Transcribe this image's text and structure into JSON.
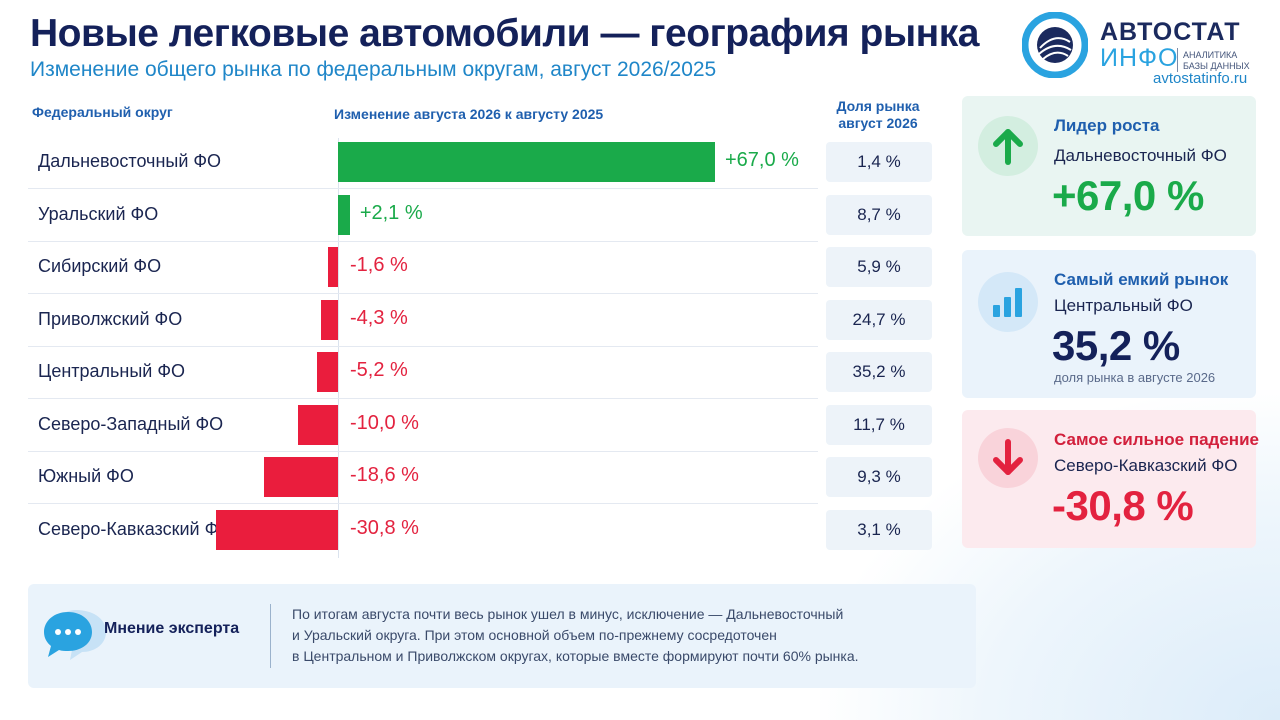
{
  "header": {
    "title": "Новые легковые автомобили — география рынка",
    "subtitle": "Изменение общего рынка по федеральным округам, август 2026/2025"
  },
  "logo": {
    "main": "АВТОСТАТ",
    "sub": "ИНФО",
    "tagline_1": "АНАЛИТИКА",
    "tagline_2": "БАЗЫ ДАННЫХ",
    "url": "avtostatinfo.ru"
  },
  "columns": {
    "region": "Федеральный округ",
    "change": "Изменение августа 2026 к августу 2025",
    "share": "Доля рынка август 2026"
  },
  "colors": {
    "positive": "#1aaa4a",
    "negative": "#ea1d3d",
    "title": "#14215a",
    "accent": "#1f86c8"
  },
  "chart_data": {
    "type": "bar",
    "orientation": "horizontal",
    "title": "Изменение августа 2026 к августу 2025",
    "categories": [
      "Дальневосточный ФО",
      "Уральский ФО",
      "Сибирский ФО",
      "Приволжский ФО",
      "Центральный ФО",
      "Северо-Западный ФО",
      "Южный ФО",
      "Северо-Кавказский ФО"
    ],
    "values": [
      67.0,
      2.1,
      -1.6,
      -4.3,
      -5.2,
      -10.0,
      -18.6,
      -30.8
    ],
    "value_labels": [
      "+67,0 %",
      "+2,1 %",
      "-1,6 %",
      "-4,3 %",
      "-5,2 %",
      "-10,0 %",
      "-18,6 %",
      "-30,8 %"
    ],
    "share_header": "Доля рынка август 2026",
    "shares": [
      1.4,
      8.7,
      5.9,
      24.7,
      35.2,
      11.7,
      9.3,
      3.1
    ],
    "share_labels": [
      "1,4 %",
      "8,7 %",
      "5,9 %",
      "24,7 %",
      "35,2 %",
      "11,7 %",
      "9,3 %",
      "3,1 %"
    ],
    "xlim": [
      -55,
      67
    ],
    "grid": false,
    "legend": "none"
  },
  "cards": {
    "growth": {
      "heading": "Лидер роста",
      "name": "Дальневосточный ФО",
      "value": "+67,0 %",
      "icon": "arrow-up-icon"
    },
    "largest": {
      "heading": "Самый емкий рынок",
      "name": "Центральный ФО",
      "value": "35,2 %",
      "note": "доля рынка в августе 2026",
      "icon": "bar-chart-icon"
    },
    "decline": {
      "heading": "Самое сильное падение",
      "name": "Северо-Кавказский ФО",
      "value": "-30,8 %",
      "icon": "arrow-down-icon"
    }
  },
  "expert": {
    "label": "Мнение эксперта",
    "icon": "chat-bubble-icon",
    "lines": [
      "По итогам августа почти весь рынок ушел в минус, исключение — Дальневосточный",
      "и Уральский округа. При этом основной объем по-прежнему сосредоточен",
      "в Центральном и Приволжском округах, которые вместе формируют почти 60% рынка."
    ]
  }
}
